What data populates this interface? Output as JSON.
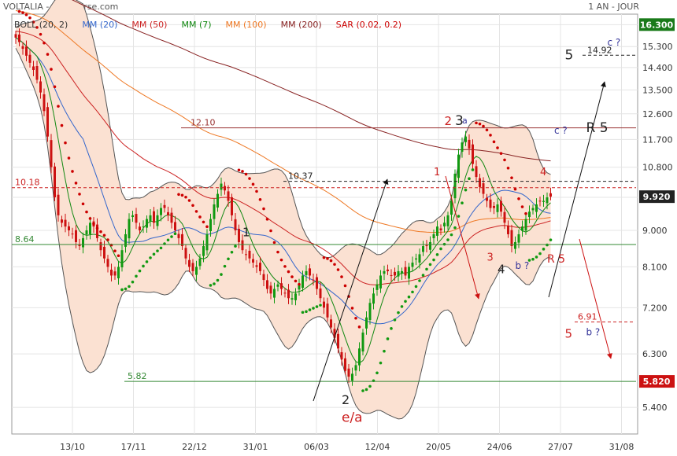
{
  "header": {
    "title": "VOLTALIA - abcbourse.com",
    "period": "1 AN - JOUR"
  },
  "legend": [
    {
      "label": "BOLL (20, 2)",
      "color": "#333333"
    },
    {
      "label": "MM (20)",
      "color": "#3366cc"
    },
    {
      "label": "MM (50)",
      "color": "#cc2222"
    },
    {
      "label": "MM (7)",
      "color": "#118811"
    },
    {
      "label": "MM (100)",
      "color": "#ee7722"
    },
    {
      "label": "MM (200)",
      "color": "#882222"
    },
    {
      "label": "SAR (0.02, 0.2)",
      "color": "#cc0000"
    }
  ],
  "colors": {
    "up": "#119911",
    "down": "#cc1111",
    "boll_fill": "#fbe1d2",
    "sar_up": "#119911",
    "sar_down": "#cc0000"
  },
  "chart_data": {
    "type": "candlestick",
    "y_scale": "log",
    "ylim": [
      5.0,
      16.8
    ],
    "y_ticks": [
      "16.300",
      "15.300",
      "14.400",
      "13.500",
      "12.600",
      "11.700",
      "10.800",
      "9.900",
      "9.000",
      "8.100",
      "7.200",
      "6.300",
      "5.400"
    ],
    "x_ticks": [
      "13/10",
      "17/11",
      "22/12",
      "31/01",
      "06/03",
      "12/04",
      "20/05",
      "24/06",
      "27/07",
      "31/08"
    ],
    "price_tags": [
      {
        "value": 16.3,
        "text": "16.300",
        "color": "#1a7a1a"
      },
      {
        "value": 9.92,
        "text": "9.920",
        "color": "#222222"
      },
      {
        "value": 5.82,
        "text": "5.820",
        "color": "#cc1111"
      }
    ],
    "close": [
      15.7,
      15.5,
      15.2,
      14.9,
      14.6,
      14.3,
      13.9,
      13.4,
      12.7,
      11.8,
      10.8,
      9.9,
      9.4,
      9.2,
      9.1,
      9.0,
      8.9,
      8.7,
      8.6,
      8.8,
      9.0,
      9.2,
      9.1,
      8.8,
      8.5,
      8.3,
      8.1,
      7.9,
      7.9,
      8.1,
      8.5,
      8.9,
      9.3,
      9.4,
      9.2,
      9.0,
      9.1,
      9.3,
      9.4,
      9.2,
      9.4,
      9.6,
      9.6,
      9.4,
      9.2,
      9.0,
      8.8,
      8.6,
      8.3,
      8.1,
      8.0,
      8.1,
      8.3,
      8.6,
      8.9,
      9.3,
      9.7,
      10.0,
      10.3,
      10.1,
      9.8,
      9.4,
      9.0,
      8.7,
      8.5,
      8.4,
      8.3,
      8.2,
      8.1,
      8.0,
      7.8,
      7.6,
      7.5,
      7.6,
      7.7,
      7.6,
      7.5,
      7.4,
      7.4,
      7.5,
      7.7,
      7.9,
      8.0,
      7.9,
      7.8,
      7.6,
      7.4,
      7.2,
      7.0,
      6.8,
      6.6,
      6.4,
      6.2,
      6.0,
      5.9,
      5.95,
      6.1,
      6.4,
      6.7,
      7.0,
      7.3,
      7.5,
      7.7,
      7.9,
      8.0,
      8.0,
      7.9,
      7.9,
      8.0,
      8.0,
      7.9,
      8.1,
      8.2,
      8.3,
      8.4,
      8.6,
      8.6,
      8.7,
      8.9,
      9.1,
      9.0,
      9.2,
      9.4,
      9.8,
      10.6,
      11.2,
      11.6,
      11.8,
      11.4,
      10.9,
      10.5,
      10.2,
      10.0,
      9.8,
      9.6,
      9.6,
      9.7,
      9.5,
      9.2,
      8.9,
      8.6,
      8.7,
      8.9,
      9.1,
      9.3,
      9.5,
      9.6,
      9.7,
      9.8,
      9.8,
      9.9,
      9.92
    ],
    "trend_lines": [
      {
        "label": "12.10",
        "value": 12.1,
        "style": "solid",
        "color": "#993333"
      },
      {
        "label": "10.37",
        "value": 10.37,
        "style": "dashed",
        "color": "#222222"
      },
      {
        "label": "10.18",
        "value": 10.18,
        "style": "dashed",
        "color": "#cc2222"
      },
      {
        "label": "8.64",
        "value": 8.64,
        "style": "solid",
        "color": "#338833"
      },
      {
        "label": "5.82",
        "value": 5.82,
        "style": "solid",
        "color": "#338833"
      },
      {
        "label": "14.92",
        "value": 14.92,
        "style": "dashed",
        "color": "#222222"
      },
      {
        "label": "6.91",
        "value": 6.91,
        "style": "dashed",
        "color": "#cc2222"
      }
    ],
    "annotations": [
      {
        "text": "1",
        "color": "#222222",
        "size": 15,
        "i": 64,
        "v": 8.85
      },
      {
        "text": "2",
        "color": "#222222",
        "size": 16,
        "i": 92,
        "v": 5.45
      },
      {
        "text": "e/a",
        "color": "#cc2222",
        "size": 17,
        "i": 92,
        "v": 5.18
      },
      {
        "text": "1",
        "color": "#cc2222",
        "size": 13,
        "i": 118,
        "v": 10.55
      },
      {
        "text": "2",
        "color": "#cc2222",
        "size": 15,
        "i": 121,
        "v": 12.2
      },
      {
        "text": "3",
        "color": "#222222",
        "size": 17,
        "i": 124,
        "v": 12.2
      },
      {
        "text": "a",
        "color": "#333399",
        "size": 11,
        "i": 126,
        "v": 12.25
      },
      {
        "text": "3",
        "color": "#cc2222",
        "size": 13,
        "i": 133,
        "v": 8.25
      },
      {
        "text": "4",
        "color": "#222222",
        "size": 15,
        "i": 136,
        "v": 7.95
      },
      {
        "text": "b ?",
        "color": "#333399",
        "size": 12,
        "i": 141,
        "v": 8.05
      },
      {
        "text": "R 5",
        "color": "#cc2222",
        "size": 14,
        "i": 150,
        "v": 8.2
      },
      {
        "text": "4",
        "color": "#cc2222",
        "size": 13,
        "i": 148,
        "v": 10.55
      },
      {
        "text": "c ?",
        "color": "#333399",
        "size": 12,
        "i": 152,
        "v": 11.9
      },
      {
        "text": "R 5",
        "color": "#222222",
        "size": 17,
        "i": 161,
        "v": 11.95
      },
      {
        "text": "5",
        "color": "#222222",
        "size": 17,
        "i": 155,
        "v": 14.75
      },
      {
        "text": "c ?",
        "color": "#333399",
        "size": 12,
        "i": 167,
        "v": 15.35
      },
      {
        "text": "5",
        "color": "#cc2222",
        "size": 15,
        "i": 155,
        "v": 6.6
      },
      {
        "text": "b ?",
        "color": "#333399",
        "size": 12,
        "i": 161,
        "v": 6.65
      }
    ]
  }
}
